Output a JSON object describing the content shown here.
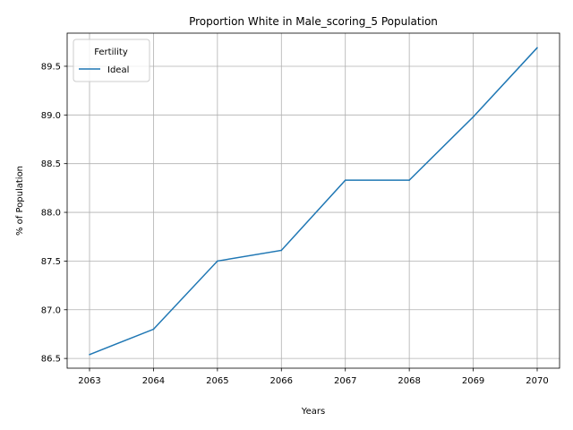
{
  "chart_data": {
    "type": "line",
    "title": "Proportion White in Male_scoring_5 Population",
    "xlabel": "Years",
    "ylabel": "% of Population",
    "x": [
      2063,
      2064,
      2065,
      2066,
      2067,
      2068,
      2069,
      2070
    ],
    "series": [
      {
        "name": "Ideal",
        "color": "#1f77b4",
        "values": [
          86.54,
          86.8,
          87.5,
          87.61,
          88.33,
          88.33,
          88.98,
          89.69
        ]
      }
    ],
    "xlim": [
      2062.65,
      2070.35
    ],
    "ylim": [
      86.4,
      89.84
    ],
    "xticks": [
      "2063",
      "2064",
      "2065",
      "2066",
      "2067",
      "2068",
      "2069",
      "2070"
    ],
    "yticks": [
      "86.5",
      "87.0",
      "87.5",
      "88.0",
      "88.5",
      "89.0",
      "89.5"
    ],
    "grid": true,
    "legend": {
      "title": "Fertility",
      "position": "top-left"
    }
  }
}
